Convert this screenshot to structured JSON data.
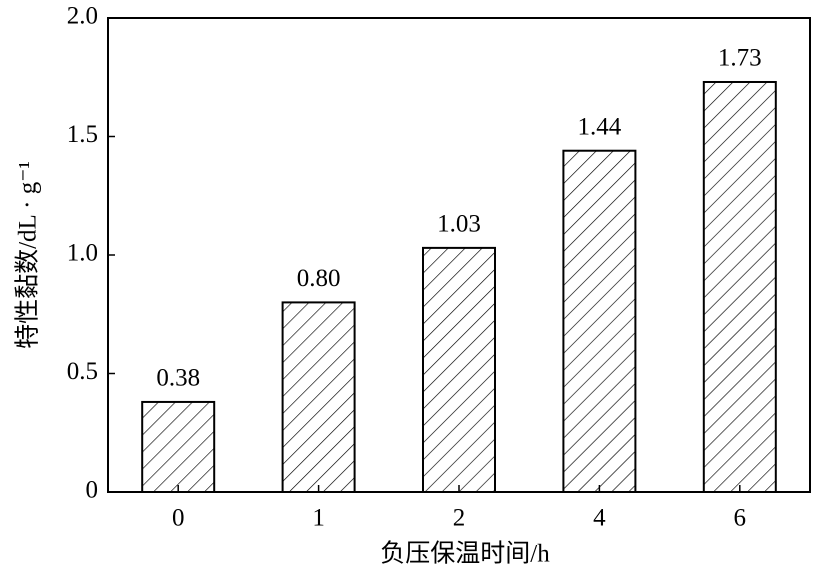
{
  "chart_data": {
    "type": "bar",
    "x_label": "负压保温时间/h",
    "y_label": "特性黏数/dL · g⁻¹",
    "categories": [
      "0",
      "1",
      "2",
      "4",
      "6"
    ],
    "values": [
      0.38,
      0.8,
      1.03,
      1.44,
      1.73
    ],
    "value_labels": [
      "0.38",
      "0.80",
      "1.03",
      "1.44",
      "1.73"
    ],
    "color": "#000000",
    "hatch": "/",
    "ylim": [
      0,
      2
    ],
    "yticks": [
      0,
      0.5,
      {
        "value": 1,
        "label": "1.0"
      },
      1.5,
      {
        "value": 2,
        "label": "2.0"
      }
    ]
  }
}
